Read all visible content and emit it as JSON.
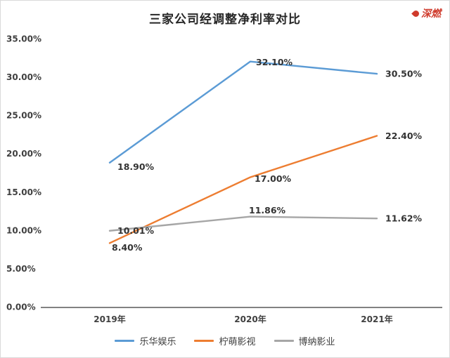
{
  "logo": {
    "text": "深燃"
  },
  "chart_data": {
    "type": "line",
    "title": "三家公司经调整净利率对比",
    "categories": [
      "2019年",
      "2020年",
      "2021年"
    ],
    "series": [
      {
        "name": "乐华娱乐",
        "color": "#5B9BD5",
        "values": [
          18.9,
          32.1,
          30.5
        ],
        "labels": [
          "18.90%",
          "32.10%",
          "30.50%"
        ],
        "label_offsets": [
          [
            11,
            7
          ],
          [
            8,
            2
          ],
          [
            12,
            1
          ]
        ]
      },
      {
        "name": "柠萌影视",
        "color": "#ED7D31",
        "values": [
          8.4,
          17.0,
          22.4
        ],
        "labels": [
          "8.40%",
          "17.00%",
          "22.40%"
        ],
        "label_offsets": [
          [
            3,
            7
          ],
          [
            6,
            3
          ],
          [
            12,
            1
          ]
        ]
      },
      {
        "name": "博纳影业",
        "color": "#A6A6A6",
        "values": [
          10.01,
          11.86,
          11.62
        ],
        "labels": [
          "10.01%",
          "11.86%",
          "11.62%"
        ],
        "label_offsets": [
          [
            11,
            1
          ],
          [
            -2,
            -8
          ],
          [
            12,
            1
          ]
        ]
      }
    ],
    "y_axis": {
      "min": 0,
      "max": 35,
      "ticks": [
        {
          "value": 35,
          "label": "35.00%"
        },
        {
          "value": 30,
          "label": "30.00%"
        },
        {
          "value": 25,
          "label": "25.00%"
        },
        {
          "value": 20,
          "label": "20.00%"
        },
        {
          "value": 15,
          "label": "15.00%"
        },
        {
          "value": 10,
          "label": "10.00%"
        },
        {
          "value": 5,
          "label": "5.00%"
        },
        {
          "value": 0,
          "label": "0.00%"
        }
      ]
    },
    "grid": false,
    "legend_position": "bottom"
  }
}
